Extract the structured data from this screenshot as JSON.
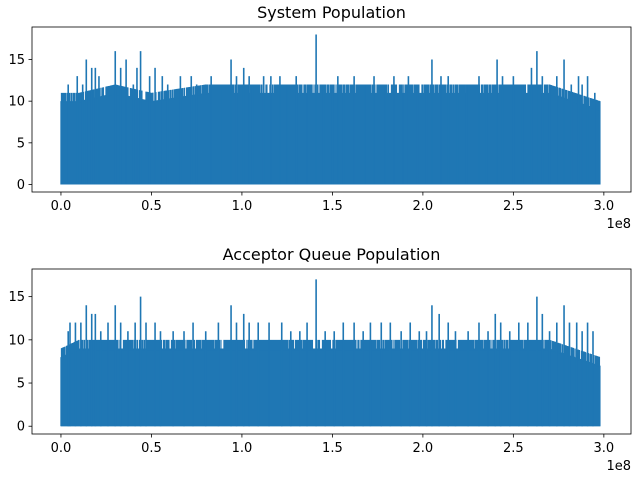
{
  "chart_data": [
    {
      "type": "line",
      "title": "System Population",
      "xlabel": "",
      "ylabel": "",
      "x_offset_label": "1e8",
      "xlim": [
        -1.6,
        31.5
      ],
      "ylim": [
        -0.9,
        18.9
      ],
      "x_ticks": [
        0.0,
        0.5,
        1.0,
        1.5,
        2.0,
        2.5,
        3.0
      ],
      "x_tick_labels": [
        "0.0",
        "0.5",
        "1.0",
        "1.5",
        "2.0",
        "2.5",
        "3.0"
      ],
      "y_ticks": [
        0,
        5,
        10,
        15
      ],
      "y_tick_labels": [
        "0",
        "5",
        "10",
        "15"
      ],
      "grid": false,
      "color": "#1f77b4",
      "x_data_range": [
        0.0,
        2.98
      ],
      "baseline_envelope": [
        [
          0.0,
          11
        ],
        [
          0.1,
          11
        ],
        [
          0.3,
          12
        ],
        [
          0.5,
          11
        ],
        [
          0.8,
          12
        ],
        [
          1.2,
          12
        ],
        [
          1.5,
          12
        ],
        [
          1.8,
          12
        ],
        [
          2.1,
          12
        ],
        [
          2.4,
          12
        ],
        [
          2.7,
          12
        ],
        [
          2.98,
          10
        ]
      ],
      "spikes": [
        [
          0.04,
          12
        ],
        [
          0.09,
          13
        ],
        [
          0.12,
          12
        ],
        [
          0.14,
          15
        ],
        [
          0.17,
          14
        ],
        [
          0.19,
          14
        ],
        [
          0.21,
          13
        ],
        [
          0.3,
          16
        ],
        [
          0.33,
          14
        ],
        [
          0.36,
          15
        ],
        [
          0.4,
          12
        ],
        [
          0.42,
          14
        ],
        [
          0.44,
          16
        ],
        [
          0.49,
          13
        ],
        [
          0.52,
          14
        ],
        [
          0.56,
          13
        ],
        [
          0.59,
          12
        ],
        [
          0.66,
          13
        ],
        [
          0.72,
          13
        ],
        [
          0.75,
          12
        ],
        [
          0.83,
          13
        ],
        [
          0.88,
          12
        ],
        [
          0.94,
          15
        ],
        [
          0.97,
          13
        ],
        [
          1.01,
          14
        ],
        [
          1.04,
          13
        ],
        [
          1.06,
          12
        ],
        [
          1.12,
          13
        ],
        [
          1.16,
          13
        ],
        [
          1.21,
          13
        ],
        [
          1.25,
          12
        ],
        [
          1.3,
          13
        ],
        [
          1.36,
          12
        ],
        [
          1.41,
          18
        ],
        [
          1.45,
          12
        ],
        [
          1.5,
          12
        ],
        [
          1.53,
          13
        ],
        [
          1.56,
          12
        ],
        [
          1.62,
          13
        ],
        [
          1.68,
          12
        ],
        [
          1.73,
          13
        ],
        [
          1.79,
          12
        ],
        [
          1.84,
          13
        ],
        [
          1.89,
          12
        ],
        [
          1.92,
          13
        ],
        [
          1.97,
          12
        ],
        [
          2.02,
          12
        ],
        [
          2.05,
          15
        ],
        [
          2.1,
          13
        ],
        [
          2.14,
          13
        ],
        [
          2.19,
          12
        ],
        [
          2.24,
          12
        ],
        [
          2.31,
          13
        ],
        [
          2.35,
          12
        ],
        [
          2.41,
          15
        ],
        [
          2.44,
          13
        ],
        [
          2.5,
          13
        ],
        [
          2.55,
          12
        ],
        [
          2.6,
          14
        ],
        [
          2.63,
          16
        ],
        [
          2.66,
          13
        ],
        [
          2.7,
          12
        ],
        [
          2.74,
          13
        ],
        [
          2.78,
          15
        ],
        [
          2.82,
          12
        ],
        [
          2.86,
          13
        ],
        [
          2.88,
          12
        ],
        [
          2.91,
          13
        ],
        [
          2.95,
          11
        ]
      ]
    },
    {
      "type": "line",
      "title": "Acceptor Queue Population",
      "xlabel": "",
      "ylabel": "",
      "x_offset_label": "1e8",
      "xlim": [
        -1.6,
        31.5
      ],
      "ylim": [
        -0.9,
        18.2
      ],
      "x_ticks": [
        0.0,
        0.5,
        1.0,
        1.5,
        2.0,
        2.5,
        3.0
      ],
      "x_tick_labels": [
        "0.0",
        "0.5",
        "1.0",
        "1.5",
        "2.0",
        "2.5",
        "3.0"
      ],
      "y_ticks": [
        0,
        5,
        10,
        15
      ],
      "y_tick_labels": [
        "0",
        "5",
        "10",
        "15"
      ],
      "grid": false,
      "color": "#1f77b4",
      "x_data_range": [
        0.0,
        2.98
      ],
      "baseline_envelope": [
        [
          0.0,
          9
        ],
        [
          0.1,
          10
        ],
        [
          0.3,
          10
        ],
        [
          0.5,
          10
        ],
        [
          0.8,
          10
        ],
        [
          1.2,
          10
        ],
        [
          1.5,
          10
        ],
        [
          1.8,
          10
        ],
        [
          2.1,
          10
        ],
        [
          2.4,
          10
        ],
        [
          2.7,
          10
        ],
        [
          2.98,
          8
        ]
      ],
      "spikes": [
        [
          0.04,
          11
        ],
        [
          0.05,
          12
        ],
        [
          0.08,
          12
        ],
        [
          0.11,
          12
        ],
        [
          0.14,
          14
        ],
        [
          0.17,
          13
        ],
        [
          0.19,
          13
        ],
        [
          0.22,
          11
        ],
        [
          0.26,
          12
        ],
        [
          0.3,
          14
        ],
        [
          0.33,
          12
        ],
        [
          0.37,
          11
        ],
        [
          0.41,
          12
        ],
        [
          0.44,
          15
        ],
        [
          0.47,
          12
        ],
        [
          0.52,
          12
        ],
        [
          0.55,
          11
        ],
        [
          0.62,
          11
        ],
        [
          0.68,
          11
        ],
        [
          0.73,
          12
        ],
        [
          0.8,
          11
        ],
        [
          0.87,
          12
        ],
        [
          0.94,
          14
        ],
        [
          0.97,
          12
        ],
        [
          1.01,
          13
        ],
        [
          1.04,
          12
        ],
        [
          1.09,
          12
        ],
        [
          1.15,
          12
        ],
        [
          1.22,
          12
        ],
        [
          1.27,
          11
        ],
        [
          1.32,
          11
        ],
        [
          1.36,
          12
        ],
        [
          1.41,
          17
        ],
        [
          1.46,
          11
        ],
        [
          1.51,
          11
        ],
        [
          1.56,
          12
        ],
        [
          1.62,
          12
        ],
        [
          1.67,
          11
        ],
        [
          1.71,
          12
        ],
        [
          1.77,
          12
        ],
        [
          1.82,
          12
        ],
        [
          1.88,
          11
        ],
        [
          1.93,
          12
        ],
        [
          1.98,
          11
        ],
        [
          2.02,
          11
        ],
        [
          2.05,
          14
        ],
        [
          2.09,
          13
        ],
        [
          2.14,
          12
        ],
        [
          2.18,
          11
        ],
        [
          2.25,
          11
        ],
        [
          2.31,
          12
        ],
        [
          2.36,
          11
        ],
        [
          2.4,
          13
        ],
        [
          2.43,
          12
        ],
        [
          2.48,
          11
        ],
        [
          2.53,
          12
        ],
        [
          2.58,
          12
        ],
        [
          2.63,
          15
        ],
        [
          2.66,
          13
        ],
        [
          2.7,
          11
        ],
        [
          2.74,
          12
        ],
        [
          2.78,
          14
        ],
        [
          2.81,
          12
        ],
        [
          2.85,
          12
        ],
        [
          2.88,
          11
        ],
        [
          2.91,
          12
        ],
        [
          2.94,
          11
        ]
      ]
    }
  ]
}
